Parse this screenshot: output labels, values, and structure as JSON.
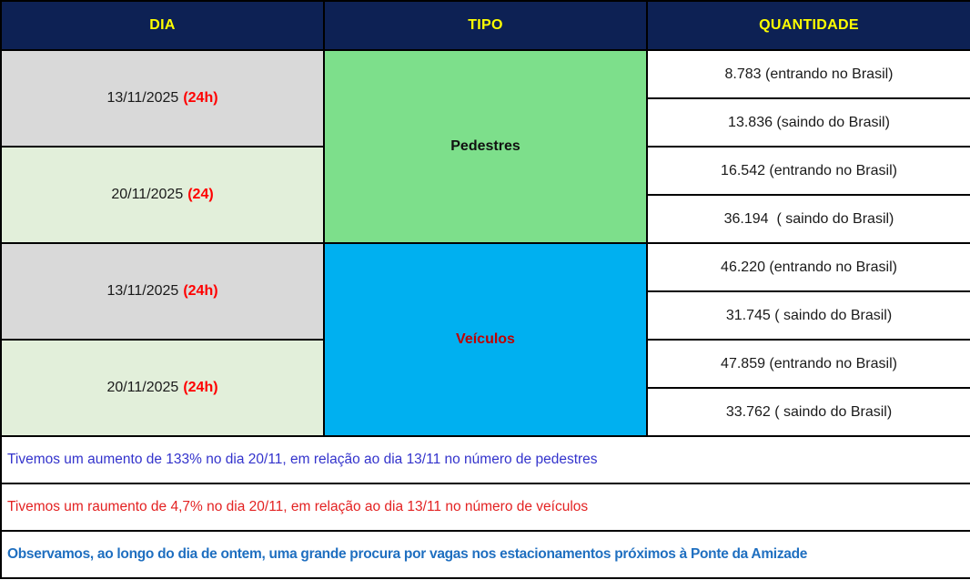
{
  "chart_data": {
    "type": "table",
    "title": "",
    "columns": [
      "DIA",
      "TIPO",
      "QUANTIDADE"
    ],
    "rows": [
      [
        "13/11/2025 (24h)",
        "Pedestres",
        "8.783 (entrando no Brasil)"
      ],
      [
        "13/11/2025 (24h)",
        "Pedestres",
        "13.836 (saindo do Brasil)"
      ],
      [
        "20/11/2025 (24)",
        "Pedestres",
        "16.542 (entrando no Brasil)"
      ],
      [
        "20/11/2025 (24)",
        "Pedestres",
        "36.194  ( saindo do Brasil)"
      ],
      [
        "13/11/2025 (24h)",
        "Veículos",
        "46.220 (entrando no Brasil)"
      ],
      [
        "13/11/2025 (24h)",
        "Veículos",
        "31.745 ( saindo do Brasil)"
      ],
      [
        "20/11/2025 (24h)",
        "Veículos",
        "47.859 (entrando no Brasil)"
      ],
      [
        "20/11/2025 (24h)",
        "Veículos",
        "33.762 ( saindo do Brasil)"
      ]
    ],
    "values": {
      "pedestres": {
        "13/11/2025": {
          "entrando_no_brasil": 8783,
          "saindo_do_brasil": 13836
        },
        "20/11/2025": {
          "entrando_no_brasil": 16542,
          "saindo_do_brasil": 36194
        }
      },
      "veiculos": {
        "13/11/2025": {
          "entrando_no_brasil": 46220,
          "saindo_do_brasil": 31745
        },
        "20/11/2025": {
          "entrando_no_brasil": 47859,
          "saindo_do_brasil": 33762
        }
      }
    },
    "annotations": [
      "Tivemos um aumento de 133% no dia 20/11, em relação ao dia 13/11 no número de pedestres",
      "Tivemos um raumento de 4,7% no dia 20/11, em relação ao dia 13/11 no número de veículos",
      "Observamos, ao longo do dia de ontem, uma grande procura por vagas nos estacionamentos próximos à Ponte da Amizade"
    ]
  },
  "table": {
    "columns": {
      "dia": "DIA",
      "tipo": "TIPO",
      "quantidade": "QUANTIDADE"
    },
    "day_cells": [
      {
        "date": "13/11/2025",
        "suffix": "(24h)"
      },
      {
        "date": "20/11/2025",
        "suffix": "(24)"
      },
      {
        "date": "13/11/2025",
        "suffix": "(24h)"
      },
      {
        "date": "20/11/2025",
        "suffix": "(24h)"
      }
    ],
    "type_cells": [
      {
        "label": "Pedestres"
      },
      {
        "label": "Veículos"
      }
    ],
    "quantity_cells": [
      "8.783 (entrando no Brasil)",
      "13.836 (saindo do Brasil)",
      "16.542 (entrando no Brasil)",
      "36.194  ( saindo do Brasil)",
      "46.220 (entrando no Brasil)",
      "31.745 ( saindo do Brasil)",
      "47.859 (entrando no Brasil)",
      "33.762 ( saindo do Brasil)"
    ]
  },
  "notes": [
    {
      "text": "Tivemos um aumento de 133% no dia 20/11, em relação ao dia 13/11 no número de pedestres"
    },
    {
      "text": "Tivemos um raumento de 4,7% no dia 20/11, em relação ao dia 13/11 no número de veículos"
    },
    {
      "text": "Observamos, ao longo do dia de ontem, uma grande procura por vagas nos estacionamentos próximos à Ponte da Amizade"
    }
  ],
  "colors": {
    "header_bg": "#0d2154",
    "header_text": "#ffff00",
    "day_gray_bg": "#d9d9d9",
    "day_lightgreen_bg": "#e2efda",
    "pedestres_bg": "#7ddf8b",
    "veiculos_bg": "#00b0f0",
    "veiculos_text": "#c00000",
    "date_suffix_red": "#ff0000",
    "note1_blue": "#3333cc",
    "note2_red": "#e32222",
    "note3_blue": "#1f6fc0",
    "border": "#000000"
  }
}
